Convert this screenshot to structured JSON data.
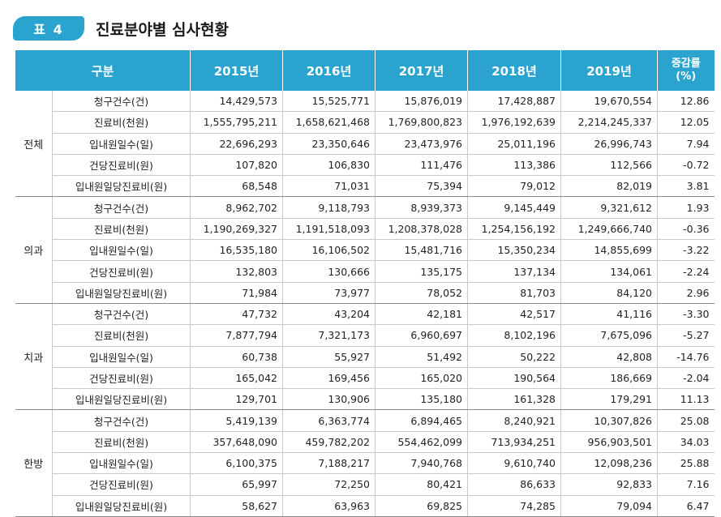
{
  "title": {
    "badge": "표  4",
    "text": "진료분야별  심사현황"
  },
  "header": {
    "category": "구분",
    "years": [
      "2015년",
      "2016년",
      "2017년",
      "2018년",
      "2019년"
    ],
    "rate_line1": "증감률",
    "rate_line2": "(%)"
  },
  "groups": [
    {
      "name": "전체",
      "rows": [
        {
          "label": "청구건수(건)",
          "values": [
            "14,429,573",
            "15,525,771",
            "15,876,019",
            "17,428,887",
            "19,670,554"
          ],
          "rate": "12.86"
        },
        {
          "label": "진료비(천원)",
          "values": [
            "1,555,795,211",
            "1,658,621,468",
            "1,769,800,823",
            "1,976,192,639",
            "2,214,245,337"
          ],
          "rate": "12.05"
        },
        {
          "label": "입내원일수(일)",
          "values": [
            "22,696,293",
            "23,350,646",
            "23,473,976",
            "25,011,196",
            "26,996,743"
          ],
          "rate": "7.94"
        },
        {
          "label": "건당진료비(원)",
          "values": [
            "107,820",
            "106,830",
            "111,476",
            "113,386",
            "112,566"
          ],
          "rate": "-0.72"
        },
        {
          "label": "입내원일당진료비(원)",
          "values": [
            "68,548",
            "71,031",
            "75,394",
            "79,012",
            "82,019"
          ],
          "rate": "3.81"
        }
      ]
    },
    {
      "name": "의과",
      "rows": [
        {
          "label": "청구건수(건)",
          "values": [
            "8,962,702",
            "9,118,793",
            "8,939,373",
            "9,145,449",
            "9,321,612"
          ],
          "rate": "1.93"
        },
        {
          "label": "진료비(천원)",
          "values": [
            "1,190,269,327",
            "1,191,518,093",
            "1,208,378,028",
            "1,254,156,192",
            "1,249,666,740"
          ],
          "rate": "-0.36"
        },
        {
          "label": "입내원일수(일)",
          "values": [
            "16,535,180",
            "16,106,502",
            "15,481,716",
            "15,350,234",
            "14,855,699"
          ],
          "rate": "-3.22"
        },
        {
          "label": "건당진료비(원)",
          "values": [
            "132,803",
            "130,666",
            "135,175",
            "137,134",
            "134,061"
          ],
          "rate": "-2.24"
        },
        {
          "label": "입내원일당진료비(원)",
          "values": [
            "71,984",
            "73,977",
            "78,052",
            "81,703",
            "84,120"
          ],
          "rate": "2.96"
        }
      ]
    },
    {
      "name": "치과",
      "rows": [
        {
          "label": "청구건수(건)",
          "values": [
            "47,732",
            "43,204",
            "42,181",
            "42,517",
            "41,116"
          ],
          "rate": "-3.30"
        },
        {
          "label": "진료비(천원)",
          "values": [
            "7,877,794",
            "7,321,173",
            "6,960,697",
            "8,102,196",
            "7,675,096"
          ],
          "rate": "-5.27"
        },
        {
          "label": "입내원일수(일)",
          "values": [
            "60,738",
            "55,927",
            "51,492",
            "50,222",
            "42,808"
          ],
          "rate": "-14.76"
        },
        {
          "label": "건당진료비(원)",
          "values": [
            "165,042",
            "169,456",
            "165,020",
            "190,564",
            "186,669"
          ],
          "rate": "-2.04"
        },
        {
          "label": "입내원일당진료비(원)",
          "values": [
            "129,701",
            "130,906",
            "135,180",
            "161,328",
            "179,291"
          ],
          "rate": "11.13"
        }
      ]
    },
    {
      "name": "한방",
      "rows": [
        {
          "label": "청구건수(건)",
          "values": [
            "5,419,139",
            "6,363,774",
            "6,894,465",
            "8,240,921",
            "10,307,826"
          ],
          "rate": "25.08"
        },
        {
          "label": "진료비(천원)",
          "values": [
            "357,648,090",
            "459,782,202",
            "554,462,099",
            "713,934,251",
            "956,903,501"
          ],
          "rate": "34.03"
        },
        {
          "label": "입내원일수(일)",
          "values": [
            "6,100,375",
            "7,188,217",
            "7,940,768",
            "9,610,740",
            "12,098,236"
          ],
          "rate": "25.88"
        },
        {
          "label": "건당진료비(원)",
          "values": [
            "65,997",
            "72,250",
            "80,421",
            "86,633",
            "92,833"
          ],
          "rate": "7.16"
        },
        {
          "label": "입내원일당진료비(원)",
          "values": [
            "58,627",
            "63,963",
            "69,825",
            "74,285",
            "79,094"
          ],
          "rate": "6.47"
        }
      ]
    }
  ]
}
